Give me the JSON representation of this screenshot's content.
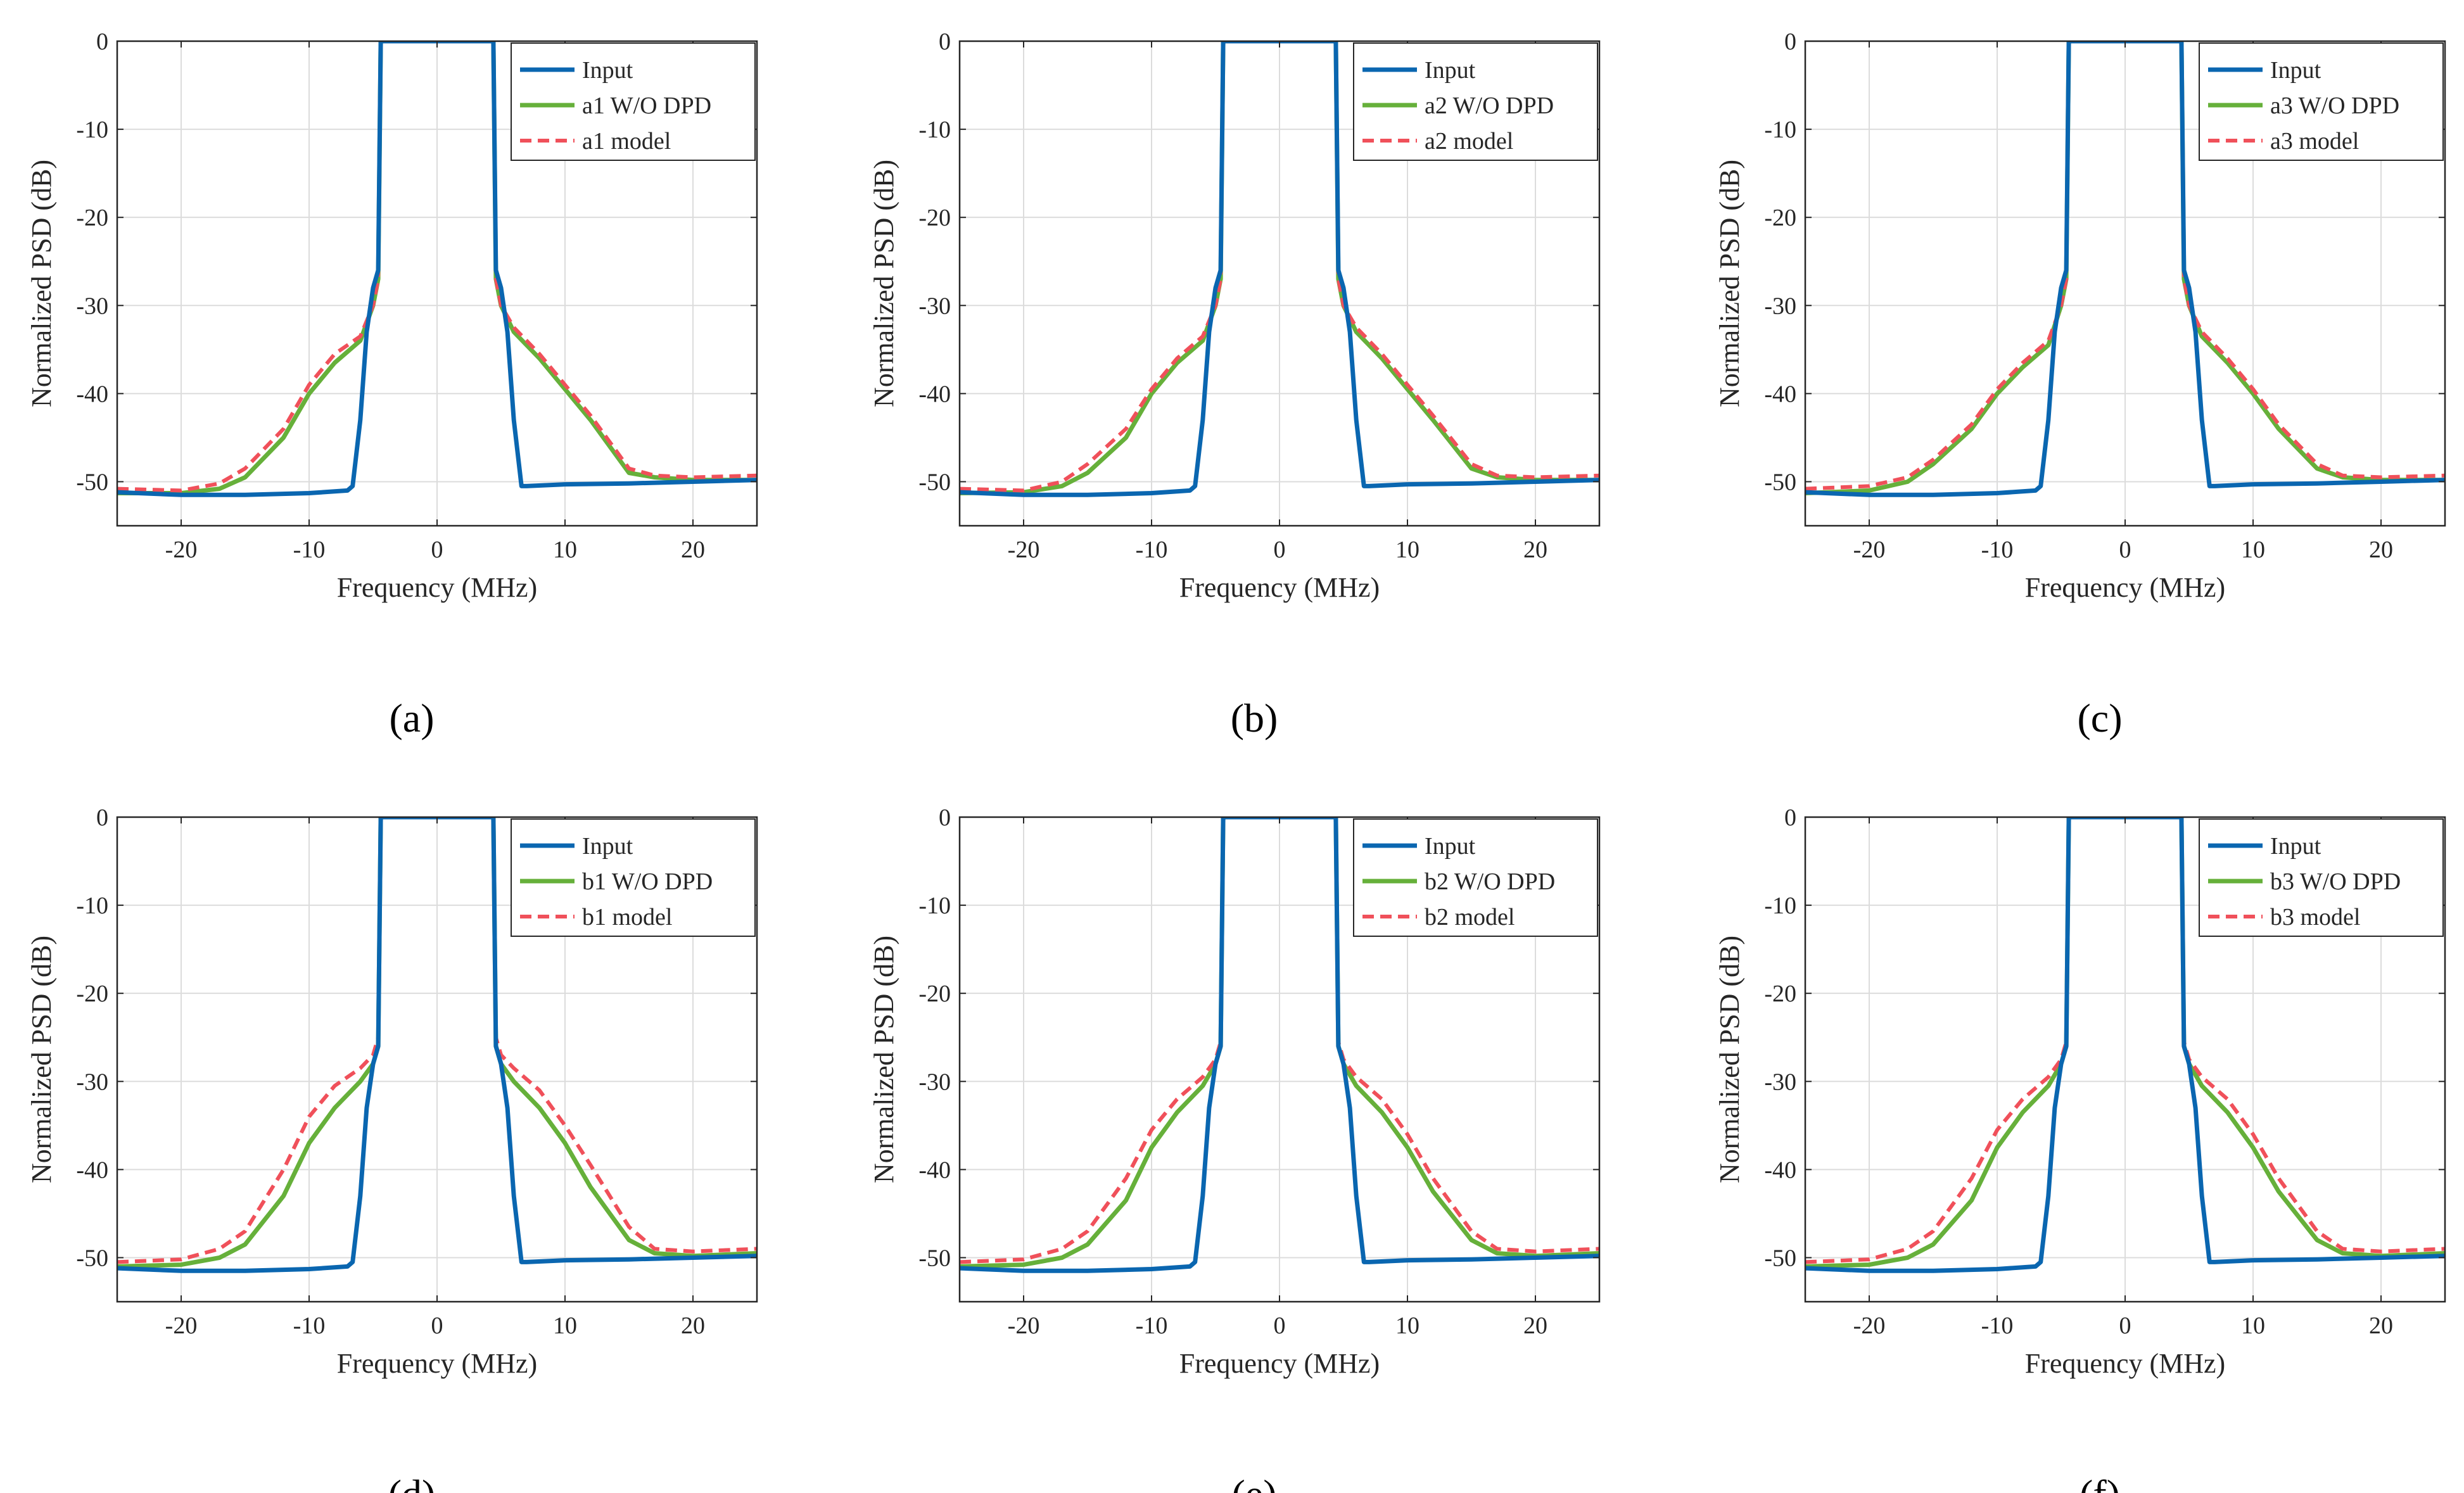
{
  "figure": {
    "xlabel": "Frequency (MHz)",
    "ylabel": "Normalized PSD (dB)",
    "colors": {
      "input": "#0a66b0",
      "wodpd": "#66b03a",
      "model": "#f0505a",
      "grid": "#dcdcdc",
      "axis": "#262626"
    }
  },
  "chart_data": [
    {
      "type": "line",
      "caption": "(a)",
      "xlabel": "Frequency (MHz)",
      "ylabel": "Normalized PSD (dB)",
      "xlim": [
        -25,
        25
      ],
      "ylim": [
        -55,
        0
      ],
      "grid": true,
      "legend_position": "top-right",
      "x_ticks": [
        -20,
        -10,
        0,
        10,
        20
      ],
      "y_ticks": [
        0,
        -10,
        -20,
        -30,
        -40,
        -50
      ],
      "series": [
        {
          "name": "Input",
          "style": "solid",
          "color": "#0a66b0",
          "x": [
            -25,
            -20,
            -15,
            -10,
            -7,
            -6.6,
            -6,
            -5.5,
            -5,
            -4.6,
            -4.4,
            4.4,
            4.6,
            5,
            5.5,
            6,
            6.6,
            7,
            10,
            15,
            20,
            25
          ],
          "y": [
            -51.2,
            -51.5,
            -51.5,
            -51.3,
            -51,
            -50.5,
            -43,
            -33,
            -28,
            -26,
            0,
            0,
            -26,
            -28,
            -33,
            -43,
            -50.5,
            -50.5,
            -50.3,
            -50.2,
            -50,
            -49.8
          ]
        },
        {
          "name": "a1 W/O DPD",
          "style": "solid",
          "color": "#66b03a",
          "x": [
            -25,
            -20,
            -17,
            -15,
            -12,
            -10,
            -8,
            -6,
            -5,
            -4.6,
            -4.4,
            4.4,
            4.6,
            5,
            6,
            8,
            10,
            12,
            15,
            17,
            20,
            25
          ],
          "y": [
            -51.3,
            -51.3,
            -50.8,
            -49.5,
            -45,
            -40,
            -36.5,
            -34,
            -30,
            -27,
            0,
            0,
            -27,
            -30,
            -33,
            -36,
            -39.5,
            -43,
            -49,
            -49.5,
            -49.8,
            -49.8
          ]
        },
        {
          "name": "a1 model",
          "style": "dashed",
          "color": "#f0505a",
          "x": [
            -25,
            -20,
            -17,
            -15,
            -12,
            -10,
            -8,
            -6,
            -5,
            -4.6,
            -4.4,
            4.4,
            4.6,
            5,
            6,
            8,
            10,
            12,
            15,
            17,
            20,
            25
          ],
          "y": [
            -50.8,
            -51,
            -50.2,
            -48.5,
            -44,
            -39,
            -35.5,
            -33.5,
            -30,
            -27,
            0,
            0,
            -27,
            -30,
            -32.5,
            -35.5,
            -39,
            -42.5,
            -48.5,
            -49.3,
            -49.5,
            -49.3
          ]
        }
      ]
    },
    {
      "type": "line",
      "caption": "(b)",
      "xlabel": "Frequency (MHz)",
      "ylabel": "Normalized PSD (dB)",
      "xlim": [
        -25,
        25
      ],
      "ylim": [
        -55,
        0
      ],
      "grid": true,
      "legend_position": "top-right",
      "x_ticks": [
        -20,
        -10,
        0,
        10,
        20
      ],
      "y_ticks": [
        0,
        -10,
        -20,
        -30,
        -40,
        -50
      ],
      "series": [
        {
          "name": "Input",
          "style": "solid",
          "color": "#0a66b0",
          "x": [
            -25,
            -20,
            -15,
            -10,
            -7,
            -6.6,
            -6,
            -5.5,
            -5,
            -4.6,
            -4.4,
            4.4,
            4.6,
            5,
            5.5,
            6,
            6.6,
            7,
            10,
            15,
            20,
            25
          ],
          "y": [
            -51.2,
            -51.5,
            -51.5,
            -51.3,
            -51,
            -50.5,
            -43,
            -33,
            -28,
            -26,
            0,
            0,
            -26,
            -28,
            -33,
            -43,
            -50.5,
            -50.5,
            -50.3,
            -50.2,
            -50,
            -49.8
          ]
        },
        {
          "name": "a2 W/O DPD",
          "style": "solid",
          "color": "#66b03a",
          "x": [
            -25,
            -20,
            -17,
            -15,
            -12,
            -10,
            -8,
            -6,
            -5,
            -4.6,
            -4.4,
            4.4,
            4.6,
            5,
            6,
            8,
            10,
            12,
            15,
            17,
            20,
            25
          ],
          "y": [
            -51.3,
            -51.2,
            -50.5,
            -49,
            -45,
            -40,
            -36.5,
            -34,
            -30,
            -27,
            0,
            0,
            -27,
            -30,
            -33,
            -36,
            -39.5,
            -43,
            -48.5,
            -49.5,
            -49.8,
            -49.8
          ]
        },
        {
          "name": "a2 model",
          "style": "dashed",
          "color": "#f0505a",
          "x": [
            -25,
            -20,
            -17,
            -15,
            -12,
            -10,
            -8,
            -6,
            -5,
            -4.6,
            -4.4,
            4.4,
            4.6,
            5,
            6,
            8,
            10,
            12,
            15,
            17,
            20,
            25
          ],
          "y": [
            -50.8,
            -51,
            -50,
            -48,
            -44,
            -39.5,
            -36,
            -33.5,
            -30,
            -27,
            0,
            0,
            -27,
            -30,
            -32.5,
            -35.5,
            -39,
            -42.5,
            -48,
            -49.3,
            -49.5,
            -49.3
          ]
        }
      ]
    },
    {
      "type": "line",
      "caption": "(c)",
      "xlabel": "Frequency (MHz)",
      "ylabel": "Normalized PSD (dB)",
      "xlim": [
        -25,
        25
      ],
      "ylim": [
        -55,
        0
      ],
      "grid": true,
      "legend_position": "top-right",
      "x_ticks": [
        -20,
        -10,
        0,
        10,
        20
      ],
      "y_ticks": [
        0,
        -10,
        -20,
        -30,
        -40,
        -50
      ],
      "series": [
        {
          "name": "Input",
          "style": "solid",
          "color": "#0a66b0",
          "x": [
            -25,
            -20,
            -15,
            -10,
            -7,
            -6.6,
            -6,
            -5.5,
            -5,
            -4.6,
            -4.4,
            4.4,
            4.6,
            5,
            5.5,
            6,
            6.6,
            7,
            10,
            15,
            20,
            25
          ],
          "y": [
            -51.2,
            -51.5,
            -51.5,
            -51.3,
            -51,
            -50.5,
            -43,
            -33,
            -28,
            -26,
            0,
            0,
            -26,
            -28,
            -33,
            -43,
            -50.5,
            -50.5,
            -50.3,
            -50.2,
            -50,
            -49.8
          ]
        },
        {
          "name": "a3 W/O DPD",
          "style": "solid",
          "color": "#66b03a",
          "x": [
            -25,
            -20,
            -17,
            -15,
            -12,
            -10,
            -8,
            -6,
            -5,
            -4.6,
            -4.4,
            4.4,
            4.6,
            5,
            6,
            8,
            10,
            12,
            15,
            17,
            20,
            25
          ],
          "y": [
            -51.3,
            -51,
            -50,
            -48,
            -44,
            -40,
            -37,
            -34.5,
            -30,
            -27,
            0,
            0,
            -27,
            -30,
            -33.5,
            -36.5,
            -40,
            -44,
            -48.5,
            -49.5,
            -49.8,
            -49.8
          ]
        },
        {
          "name": "a3 model",
          "style": "dashed",
          "color": "#f0505a",
          "x": [
            -25,
            -20,
            -17,
            -15,
            -12,
            -10,
            -8,
            -6,
            -5,
            -4.6,
            -4.4,
            4.4,
            4.6,
            5,
            6,
            8,
            10,
            12,
            15,
            17,
            20,
            25
          ],
          "y": [
            -50.8,
            -50.5,
            -49.5,
            -47.5,
            -43.5,
            -39.5,
            -36.5,
            -34,
            -30,
            -27,
            0,
            0,
            -27,
            -30,
            -33,
            -36,
            -39.5,
            -43.5,
            -48,
            -49.3,
            -49.5,
            -49.3
          ]
        }
      ]
    },
    {
      "type": "line",
      "caption": "(d)",
      "xlabel": "Frequency (MHz)",
      "ylabel": "Normalized PSD (dB)",
      "xlim": [
        -25,
        25
      ],
      "ylim": [
        -55,
        0
      ],
      "grid": true,
      "legend_position": "top-right",
      "x_ticks": [
        -20,
        -10,
        0,
        10,
        20
      ],
      "y_ticks": [
        0,
        -10,
        -20,
        -30,
        -40,
        -50
      ],
      "series": [
        {
          "name": "Input",
          "style": "solid",
          "color": "#0a66b0",
          "x": [
            -25,
            -20,
            -15,
            -10,
            -7,
            -6.6,
            -6,
            -5.5,
            -5,
            -4.6,
            -4.4,
            4.4,
            4.6,
            5,
            5.5,
            6,
            6.6,
            7,
            10,
            15,
            20,
            25
          ],
          "y": [
            -51.2,
            -51.5,
            -51.5,
            -51.3,
            -51,
            -50.5,
            -43,
            -33,
            -28,
            -26,
            0,
            0,
            -26,
            -28,
            -33,
            -43,
            -50.5,
            -50.5,
            -50.3,
            -50.2,
            -50,
            -49.8
          ]
        },
        {
          "name": "b1 W/O DPD",
          "style": "solid",
          "color": "#66b03a",
          "x": [
            -25,
            -20,
            -17,
            -15,
            -12,
            -10,
            -8,
            -6,
            -5,
            -4.6,
            -4.4,
            4.4,
            4.6,
            5,
            6,
            8,
            10,
            12,
            15,
            17,
            20,
            25
          ],
          "y": [
            -51,
            -50.8,
            -50,
            -48.5,
            -43,
            -37,
            -33,
            -30,
            -28,
            -26,
            0,
            0,
            -26,
            -28,
            -30,
            -33,
            -37,
            -42,
            -48,
            -49.5,
            -49.8,
            -49.5
          ]
        },
        {
          "name": "b1 model",
          "style": "dashed",
          "color": "#f0505a",
          "x": [
            -25,
            -20,
            -17,
            -15,
            -12,
            -10,
            -8,
            -6,
            -5,
            -4.6,
            -4.4,
            4.4,
            4.6,
            5,
            6,
            8,
            10,
            12,
            15,
            17,
            20,
            25
          ],
          "y": [
            -50.5,
            -50.2,
            -49,
            -47,
            -40,
            -34,
            -30.5,
            -28.5,
            -27,
            -25,
            0,
            0,
            -25,
            -27,
            -28.5,
            -31,
            -35,
            -39.5,
            -46.5,
            -49,
            -49.3,
            -49
          ]
        }
      ]
    },
    {
      "type": "line",
      "caption": "(e)",
      "xlabel": "Frequency (MHz)",
      "ylabel": "Normalized PSD (dB)",
      "xlim": [
        -25,
        25
      ],
      "ylim": [
        -55,
        0
      ],
      "grid": true,
      "legend_position": "top-right",
      "x_ticks": [
        -20,
        -10,
        0,
        10,
        20
      ],
      "y_ticks": [
        0,
        -10,
        -20,
        -30,
        -40,
        -50
      ],
      "series": [
        {
          "name": "Input",
          "style": "solid",
          "color": "#0a66b0",
          "x": [
            -25,
            -20,
            -15,
            -10,
            -7,
            -6.6,
            -6,
            -5.5,
            -5,
            -4.6,
            -4.4,
            4.4,
            4.6,
            5,
            5.5,
            6,
            6.6,
            7,
            10,
            15,
            20,
            25
          ],
          "y": [
            -51.2,
            -51.5,
            -51.5,
            -51.3,
            -51,
            -50.5,
            -43,
            -33,
            -28,
            -26,
            0,
            0,
            -26,
            -28,
            -33,
            -43,
            -50.5,
            -50.5,
            -50.3,
            -50.2,
            -50,
            -49.8
          ]
        },
        {
          "name": "b2 W/O DPD",
          "style": "solid",
          "color": "#66b03a",
          "x": [
            -25,
            -20,
            -17,
            -15,
            -12,
            -10,
            -8,
            -6,
            -5,
            -4.6,
            -4.4,
            4.4,
            4.6,
            5,
            6,
            8,
            10,
            12,
            15,
            17,
            20,
            25
          ],
          "y": [
            -51,
            -50.8,
            -50,
            -48.5,
            -43.5,
            -37.5,
            -33.5,
            -30.5,
            -28,
            -26,
            0,
            0,
            -26,
            -28,
            -30.5,
            -33.5,
            -37.5,
            -42.5,
            -48,
            -49.5,
            -49.8,
            -49.5
          ]
        },
        {
          "name": "b2 model",
          "style": "dashed",
          "color": "#f0505a",
          "x": [
            -25,
            -20,
            -17,
            -15,
            -12,
            -10,
            -8,
            -6,
            -5,
            -4.6,
            -4.4,
            4.4,
            4.6,
            5,
            6,
            8,
            10,
            12,
            15,
            17,
            20,
            25
          ],
          "y": [
            -50.5,
            -50.2,
            -49,
            -47,
            -41,
            -35.5,
            -32,
            -29.5,
            -27.5,
            -25.5,
            0,
            0,
            -25.5,
            -27.5,
            -29.5,
            -32,
            -36,
            -41,
            -47,
            -49,
            -49.3,
            -49
          ]
        }
      ]
    },
    {
      "type": "line",
      "caption": "(f)",
      "xlabel": "Frequency (MHz)",
      "ylabel": "Normalized PSD (dB)",
      "xlim": [
        -25,
        25
      ],
      "ylim": [
        -55,
        0
      ],
      "grid": true,
      "legend_position": "top-right",
      "x_ticks": [
        -20,
        -10,
        0,
        10,
        20
      ],
      "y_ticks": [
        0,
        -10,
        -20,
        -30,
        -40,
        -50
      ],
      "series": [
        {
          "name": "Input",
          "style": "solid",
          "color": "#0a66b0",
          "x": [
            -25,
            -20,
            -15,
            -10,
            -7,
            -6.6,
            -6,
            -5.5,
            -5,
            -4.6,
            -4.4,
            4.4,
            4.6,
            5,
            5.5,
            6,
            6.6,
            7,
            10,
            15,
            20,
            25
          ],
          "y": [
            -51.2,
            -51.5,
            -51.5,
            -51.3,
            -51,
            -50.5,
            -43,
            -33,
            -28,
            -26,
            0,
            0,
            -26,
            -28,
            -33,
            -43,
            -50.5,
            -50.5,
            -50.3,
            -50.2,
            -50,
            -49.8
          ]
        },
        {
          "name": "b3 W/O DPD",
          "style": "solid",
          "color": "#66b03a",
          "x": [
            -25,
            -20,
            -17,
            -15,
            -12,
            -10,
            -8,
            -6,
            -5,
            -4.6,
            -4.4,
            4.4,
            4.6,
            5,
            6,
            8,
            10,
            12,
            15,
            17,
            20,
            25
          ],
          "y": [
            -51,
            -50.8,
            -50,
            -48.5,
            -43.5,
            -37.5,
            -33.5,
            -30.5,
            -28,
            -26,
            0,
            0,
            -26,
            -28,
            -30.5,
            -33.5,
            -37.5,
            -42.5,
            -48,
            -49.5,
            -49.8,
            -49.5
          ]
        },
        {
          "name": "b3 model",
          "style": "dashed",
          "color": "#f0505a",
          "x": [
            -25,
            -20,
            -17,
            -15,
            -12,
            -10,
            -8,
            -6,
            -5,
            -4.6,
            -4.4,
            4.4,
            4.6,
            5,
            6,
            8,
            10,
            12,
            15,
            17,
            20,
            25
          ],
          "y": [
            -50.5,
            -50.2,
            -49,
            -47,
            -41,
            -35.5,
            -32,
            -29.5,
            -27.5,
            -25.5,
            0,
            0,
            -25.5,
            -27.5,
            -29.5,
            -32,
            -36,
            -41,
            -47,
            -49,
            -49.3,
            -49
          ]
        }
      ]
    }
  ]
}
